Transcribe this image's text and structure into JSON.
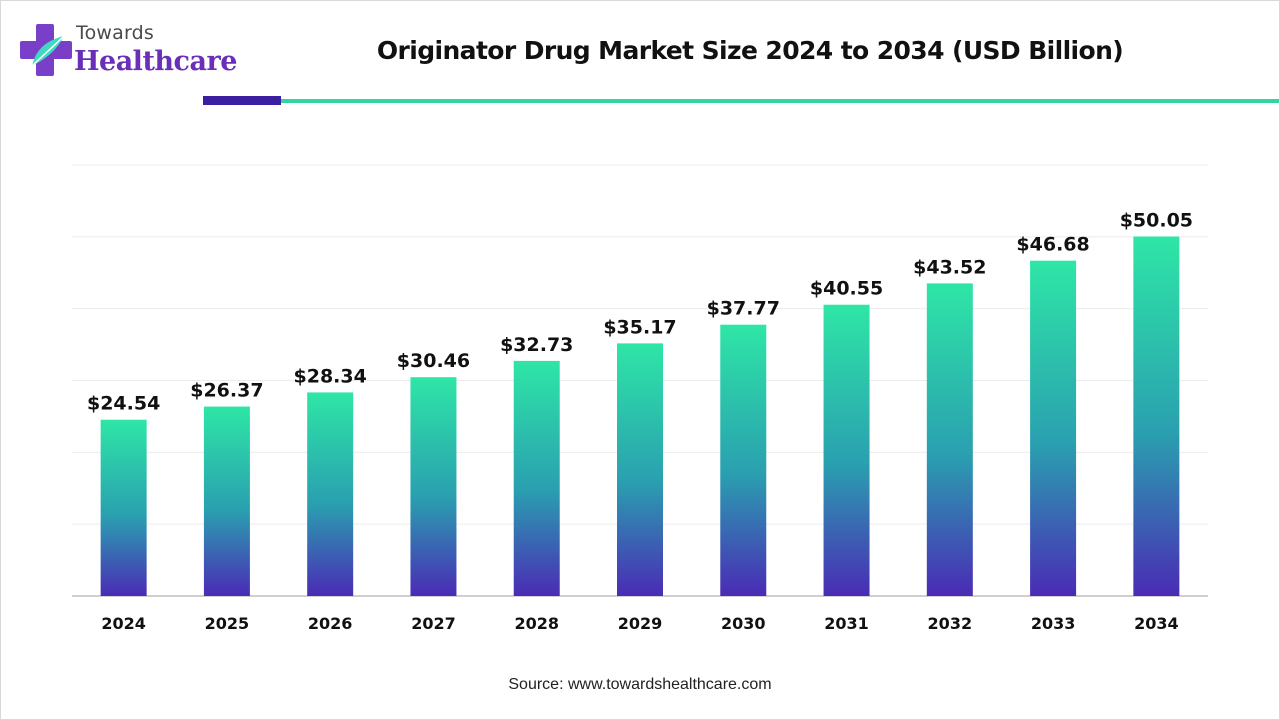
{
  "brand": {
    "top": "Towards",
    "main": "Healthcare"
  },
  "colors": {
    "bar_top": "#2ee6a6",
    "bar_mid": "#2a9fb0",
    "bar_bottom": "#4a2bb5",
    "rule_dark": "#3b1fa0",
    "rule_teal": "#2fd6a2",
    "grid": "#ececec",
    "axis": "#bfbfbf"
  },
  "chart_data": {
    "type": "bar",
    "title": "Originator Drug Market Size 2024 to 2034 (USD Billion)",
    "categories": [
      "2024",
      "2025",
      "2026",
      "2027",
      "2028",
      "2029",
      "2030",
      "2031",
      "2032",
      "2033",
      "2034"
    ],
    "values": [
      24.54,
      26.37,
      28.34,
      30.46,
      32.73,
      35.17,
      37.77,
      40.55,
      43.52,
      46.68,
      50.05
    ],
    "labels": [
      "$24.54",
      "$26.37",
      "$28.34",
      "$30.46",
      "$32.73",
      "$35.17",
      "$37.77",
      "$40.55",
      "$43.52",
      "$46.68",
      "$50.05"
    ],
    "xlabel": "",
    "ylabel": "",
    "ylim": [
      0,
      60
    ],
    "grid": true,
    "legend": "none"
  },
  "source": "Source: www.towardshealthcare.com"
}
